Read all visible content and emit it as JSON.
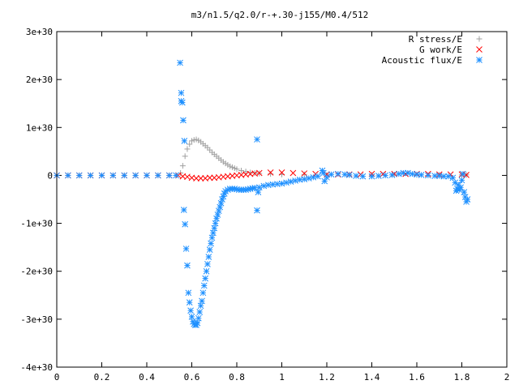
{
  "chart_data": {
    "type": "scatter",
    "title": "m3/n1.5/q2.0/r-+.30-j155/M0.4/512",
    "xlabel": "",
    "ylabel": "",
    "xlim": [
      0,
      2
    ],
    "ylim": [
      -4e+30,
      3e+30
    ],
    "grid": false,
    "legend_position": "top-right",
    "x_ticks": [
      {
        "value": 0,
        "label": "0"
      },
      {
        "value": 0.2,
        "label": "0.2"
      },
      {
        "value": 0.4,
        "label": "0.4"
      },
      {
        "value": 0.6,
        "label": "0.6"
      },
      {
        "value": 0.8,
        "label": "0.8"
      },
      {
        "value": 1.0,
        "label": "1"
      },
      {
        "value": 1.2,
        "label": "1.2"
      },
      {
        "value": 1.4,
        "label": "1.4"
      },
      {
        "value": 1.6,
        "label": "1.6"
      },
      {
        "value": 1.8,
        "label": "1.8"
      },
      {
        "value": 2.0,
        "label": "2"
      }
    ],
    "y_ticks": [
      {
        "value": 3e+30,
        "label": "3e+30"
      },
      {
        "value": 2e+30,
        "label": "2e+30"
      },
      {
        "value": 1e+30,
        "label": "1e+30"
      },
      {
        "value": 0,
        "label": "0"
      },
      {
        "value": -1e+30,
        "label": "-1e+30"
      },
      {
        "value": -2e+30,
        "label": "-2e+30"
      },
      {
        "value": -3e+30,
        "label": "-3e+30"
      },
      {
        "value": -4e+30,
        "label": "-4e+30"
      }
    ],
    "series": [
      {
        "name": "R stress/E",
        "marker": "plus",
        "color": "#a0a0a0",
        "points": [
          [
            0.0,
            0
          ],
          [
            0.05,
            0
          ],
          [
            0.1,
            0
          ],
          [
            0.15,
            0
          ],
          [
            0.2,
            0
          ],
          [
            0.25,
            0
          ],
          [
            0.3,
            0
          ],
          [
            0.35,
            0
          ],
          [
            0.4,
            0
          ],
          [
            0.45,
            0
          ],
          [
            0.5,
            0
          ],
          [
            0.53,
            0
          ],
          [
            0.55,
            5e+28
          ],
          [
            0.56,
            2e+29
          ],
          [
            0.57,
            4e+29
          ],
          [
            0.58,
            5.5e+29
          ],
          [
            0.59,
            6.5e+29
          ],
          [
            0.6,
            7.2e+29
          ],
          [
            0.61,
            7.4e+29
          ],
          [
            0.62,
            7.5e+29
          ],
          [
            0.63,
            7.3e+29
          ],
          [
            0.64,
            7e+29
          ],
          [
            0.65,
            6.6e+29
          ],
          [
            0.66,
            6.2e+29
          ],
          [
            0.67,
            5.8e+29
          ],
          [
            0.68,
            5.3e+29
          ],
          [
            0.69,
            4.8e+29
          ],
          [
            0.7,
            4.4e+29
          ],
          [
            0.71,
            4e+29
          ],
          [
            0.72,
            3.6e+29
          ],
          [
            0.73,
            3.2e+29
          ],
          [
            0.74,
            2.8e+29
          ],
          [
            0.75,
            2.5e+29
          ],
          [
            0.76,
            2.2e+29
          ],
          [
            0.77,
            1.9e+29
          ],
          [
            0.78,
            1.7e+29
          ],
          [
            0.79,
            1.5e+29
          ],
          [
            0.8,
            1.3e+29
          ],
          [
            0.82,
            1e+29
          ],
          [
            0.84,
            8e+28
          ],
          [
            0.86,
            6e+28
          ],
          [
            0.88,
            5e+28
          ],
          [
            0.9,
            4e+28
          ],
          [
            0.95,
            3e+28
          ],
          [
            1.0,
            2e+28
          ],
          [
            1.1,
            2e+28
          ],
          [
            1.2,
            1e+28
          ],
          [
            1.3,
            1e+28
          ],
          [
            1.4,
            1e+28
          ],
          [
            1.5,
            1e+28
          ],
          [
            1.6,
            1e+28
          ],
          [
            1.7,
            1e+28
          ],
          [
            1.8,
            1e+28
          ],
          [
            1.82,
            1e+28
          ]
        ]
      },
      {
        "name": "G work/E",
        "marker": "cross",
        "color": "#ff0000",
        "points": [
          [
            0.0,
            0
          ],
          [
            0.05,
            0
          ],
          [
            0.1,
            0
          ],
          [
            0.15,
            0
          ],
          [
            0.2,
            0
          ],
          [
            0.25,
            0
          ],
          [
            0.3,
            0
          ],
          [
            0.35,
            0
          ],
          [
            0.4,
            0
          ],
          [
            0.45,
            0
          ],
          [
            0.5,
            0
          ],
          [
            0.54,
            0
          ],
          [
            0.56,
            -2e+28
          ],
          [
            0.58,
            -3e+28
          ],
          [
            0.6,
            -5e+28
          ],
          [
            0.62,
            -6e+28
          ],
          [
            0.64,
            -6e+28
          ],
          [
            0.66,
            -6e+28
          ],
          [
            0.68,
            -5e+28
          ],
          [
            0.7,
            -5e+28
          ],
          [
            0.72,
            -4e+28
          ],
          [
            0.74,
            -3e+28
          ],
          [
            0.76,
            -2e+28
          ],
          [
            0.78,
            -1e+28
          ],
          [
            0.8,
            0
          ],
          [
            0.82,
            1e+28
          ],
          [
            0.84,
            2e+28
          ],
          [
            0.86,
            3e+28
          ],
          [
            0.88,
            4e+28
          ],
          [
            0.9,
            5e+28
          ],
          [
            0.95,
            6e+28
          ],
          [
            1.0,
            6e+28
          ],
          [
            1.05,
            5e+28
          ],
          [
            1.1,
            4e+28
          ],
          [
            1.15,
            3e+28
          ],
          [
            1.2,
            2e+28
          ],
          [
            1.25,
            2e+28
          ],
          [
            1.3,
            2e+28
          ],
          [
            1.35,
            2e+28
          ],
          [
            1.4,
            3e+28
          ],
          [
            1.45,
            3e+28
          ],
          [
            1.5,
            3e+28
          ],
          [
            1.55,
            3e+28
          ],
          [
            1.6,
            3e+28
          ],
          [
            1.65,
            3e+28
          ],
          [
            1.7,
            2e+28
          ],
          [
            1.75,
            2e+28
          ],
          [
            1.8,
            2e+28
          ],
          [
            1.82,
            1e+28
          ]
        ]
      },
      {
        "name": "Acoustic flux/E",
        "marker": "star",
        "color": "#1e90ff",
        "points": [
          [
            0.0,
            0
          ],
          [
            0.05,
            0
          ],
          [
            0.1,
            0
          ],
          [
            0.15,
            0
          ],
          [
            0.2,
            0
          ],
          [
            0.25,
            0
          ],
          [
            0.3,
            0
          ],
          [
            0.35,
            0
          ],
          [
            0.4,
            0
          ],
          [
            0.45,
            0
          ],
          [
            0.5,
            0
          ],
          [
            0.53,
            0
          ],
          [
            0.548,
            2.35e+30
          ],
          [
            0.553,
            1.72e+30
          ],
          [
            0.553,
            1.55e+30
          ],
          [
            0.558,
            1.52e+30
          ],
          [
            0.562,
            1.15e+30
          ],
          [
            0.567,
            7.2e+29
          ],
          [
            0.565,
            -7.2e+29
          ],
          [
            0.57,
            -1.02e+30
          ],
          [
            0.575,
            -1.53e+30
          ],
          [
            0.58,
            -1.88e+30
          ],
          [
            0.585,
            -2.45e+30
          ],
          [
            0.59,
            -2.65e+30
          ],
          [
            0.595,
            -2.82e+30
          ],
          [
            0.6,
            -2.95e+30
          ],
          [
            0.605,
            -3.05e+30
          ],
          [
            0.61,
            -3.1e+30
          ],
          [
            0.615,
            -3.12e+30
          ],
          [
            0.62,
            -3.12e+30
          ],
          [
            0.625,
            -3.08e+30
          ],
          [
            0.63,
            -2.98e+30
          ],
          [
            0.635,
            -2.85e+30
          ],
          [
            0.64,
            -2.72e+30
          ],
          [
            0.645,
            -2.62e+30
          ],
          [
            0.65,
            -2.45e+30
          ],
          [
            0.655,
            -2.3e+30
          ],
          [
            0.66,
            -2.15e+30
          ],
          [
            0.665,
            -2e+30
          ],
          [
            0.67,
            -1.85e+30
          ],
          [
            0.675,
            -1.7e+30
          ],
          [
            0.68,
            -1.55e+30
          ],
          [
            0.685,
            -1.42e+30
          ],
          [
            0.69,
            -1.3e+30
          ],
          [
            0.695,
            -1.2e+30
          ],
          [
            0.7,
            -1.1e+30
          ],
          [
            0.705,
            -1e+30
          ],
          [
            0.71,
            -9e+29
          ],
          [
            0.715,
            -8.2e+29
          ],
          [
            0.72,
            -7.4e+29
          ],
          [
            0.725,
            -6.6e+29
          ],
          [
            0.73,
            -5.8e+29
          ],
          [
            0.735,
            -5e+29
          ],
          [
            0.74,
            -4.4e+29
          ],
          [
            0.745,
            -3.8e+29
          ],
          [
            0.75,
            -3.3e+29
          ],
          [
            0.76,
            -3e+29
          ],
          [
            0.77,
            -2.8e+29
          ],
          [
            0.78,
            -2.8e+29
          ],
          [
            0.79,
            -2.8e+29
          ],
          [
            0.8,
            -2.9e+29
          ],
          [
            0.81,
            -3e+29
          ],
          [
            0.82,
            -3e+29
          ],
          [
            0.83,
            -3e+29
          ],
          [
            0.84,
            -3e+29
          ],
          [
            0.85,
            -2.9e+29
          ],
          [
            0.86,
            -2.8e+29
          ],
          [
            0.87,
            -2.7e+29
          ],
          [
            0.88,
            -2.6e+29
          ],
          [
            0.89,
            7.5e+29
          ],
          [
            0.89,
            -7.3e+29
          ],
          [
            0.895,
            -3.5e+29
          ],
          [
            0.9,
            -2.5e+29
          ],
          [
            0.92,
            -2.2e+29
          ],
          [
            0.94,
            -2e+29
          ],
          [
            0.96,
            -1.9e+29
          ],
          [
            0.98,
            -1.8e+29
          ],
          [
            1.0,
            -1.7e+29
          ],
          [
            1.02,
            -1.5e+29
          ],
          [
            1.04,
            -1.3e+29
          ],
          [
            1.06,
            -1.1e+29
          ],
          [
            1.08,
            -9e+28
          ],
          [
            1.1,
            -8e+28
          ],
          [
            1.12,
            -6e+28
          ],
          [
            1.14,
            -4e+28
          ],
          [
            1.16,
            -2e+28
          ],
          [
            1.18,
            1e+29
          ],
          [
            1.185,
            5e+28
          ],
          [
            1.19,
            -1.2e+29
          ],
          [
            1.2,
            -4e+28
          ],
          [
            1.22,
            2e+28
          ],
          [
            1.25,
            3e+28
          ],
          [
            1.28,
            2e+28
          ],
          [
            1.3,
            1e+28
          ],
          [
            1.33,
            -1e+28
          ],
          [
            1.36,
            -2e+28
          ],
          [
            1.4,
            -2e+28
          ],
          [
            1.43,
            -1e+28
          ],
          [
            1.46,
            0
          ],
          [
            1.49,
            1e+28
          ],
          [
            1.52,
            3e+28
          ],
          [
            1.54,
            5e+28
          ],
          [
            1.56,
            5e+28
          ],
          [
            1.58,
            3e+28
          ],
          [
            1.6,
            2e+28
          ],
          [
            1.62,
            1e+28
          ],
          [
            1.65,
            0
          ],
          [
            1.68,
            -1e+28
          ],
          [
            1.7,
            -1e+28
          ],
          [
            1.72,
            -2e+28
          ],
          [
            1.74,
            -2e+28
          ],
          [
            1.76,
            -5e+28
          ],
          [
            1.77,
            -1.5e+29
          ],
          [
            1.775,
            -3.2e+29
          ],
          [
            1.78,
            -2.8e+29
          ],
          [
            1.785,
            -2e+29
          ],
          [
            1.79,
            -3e+29
          ],
          [
            1.795,
            -2.5e+29
          ],
          [
            1.8,
            -1e+29
          ],
          [
            1.805,
            3e+28
          ],
          [
            1.81,
            -3.5e+29
          ],
          [
            1.815,
            -4.5e+29
          ],
          [
            1.82,
            -5.5e+29
          ],
          [
            1.825,
            -5e+29
          ]
        ]
      }
    ]
  }
}
